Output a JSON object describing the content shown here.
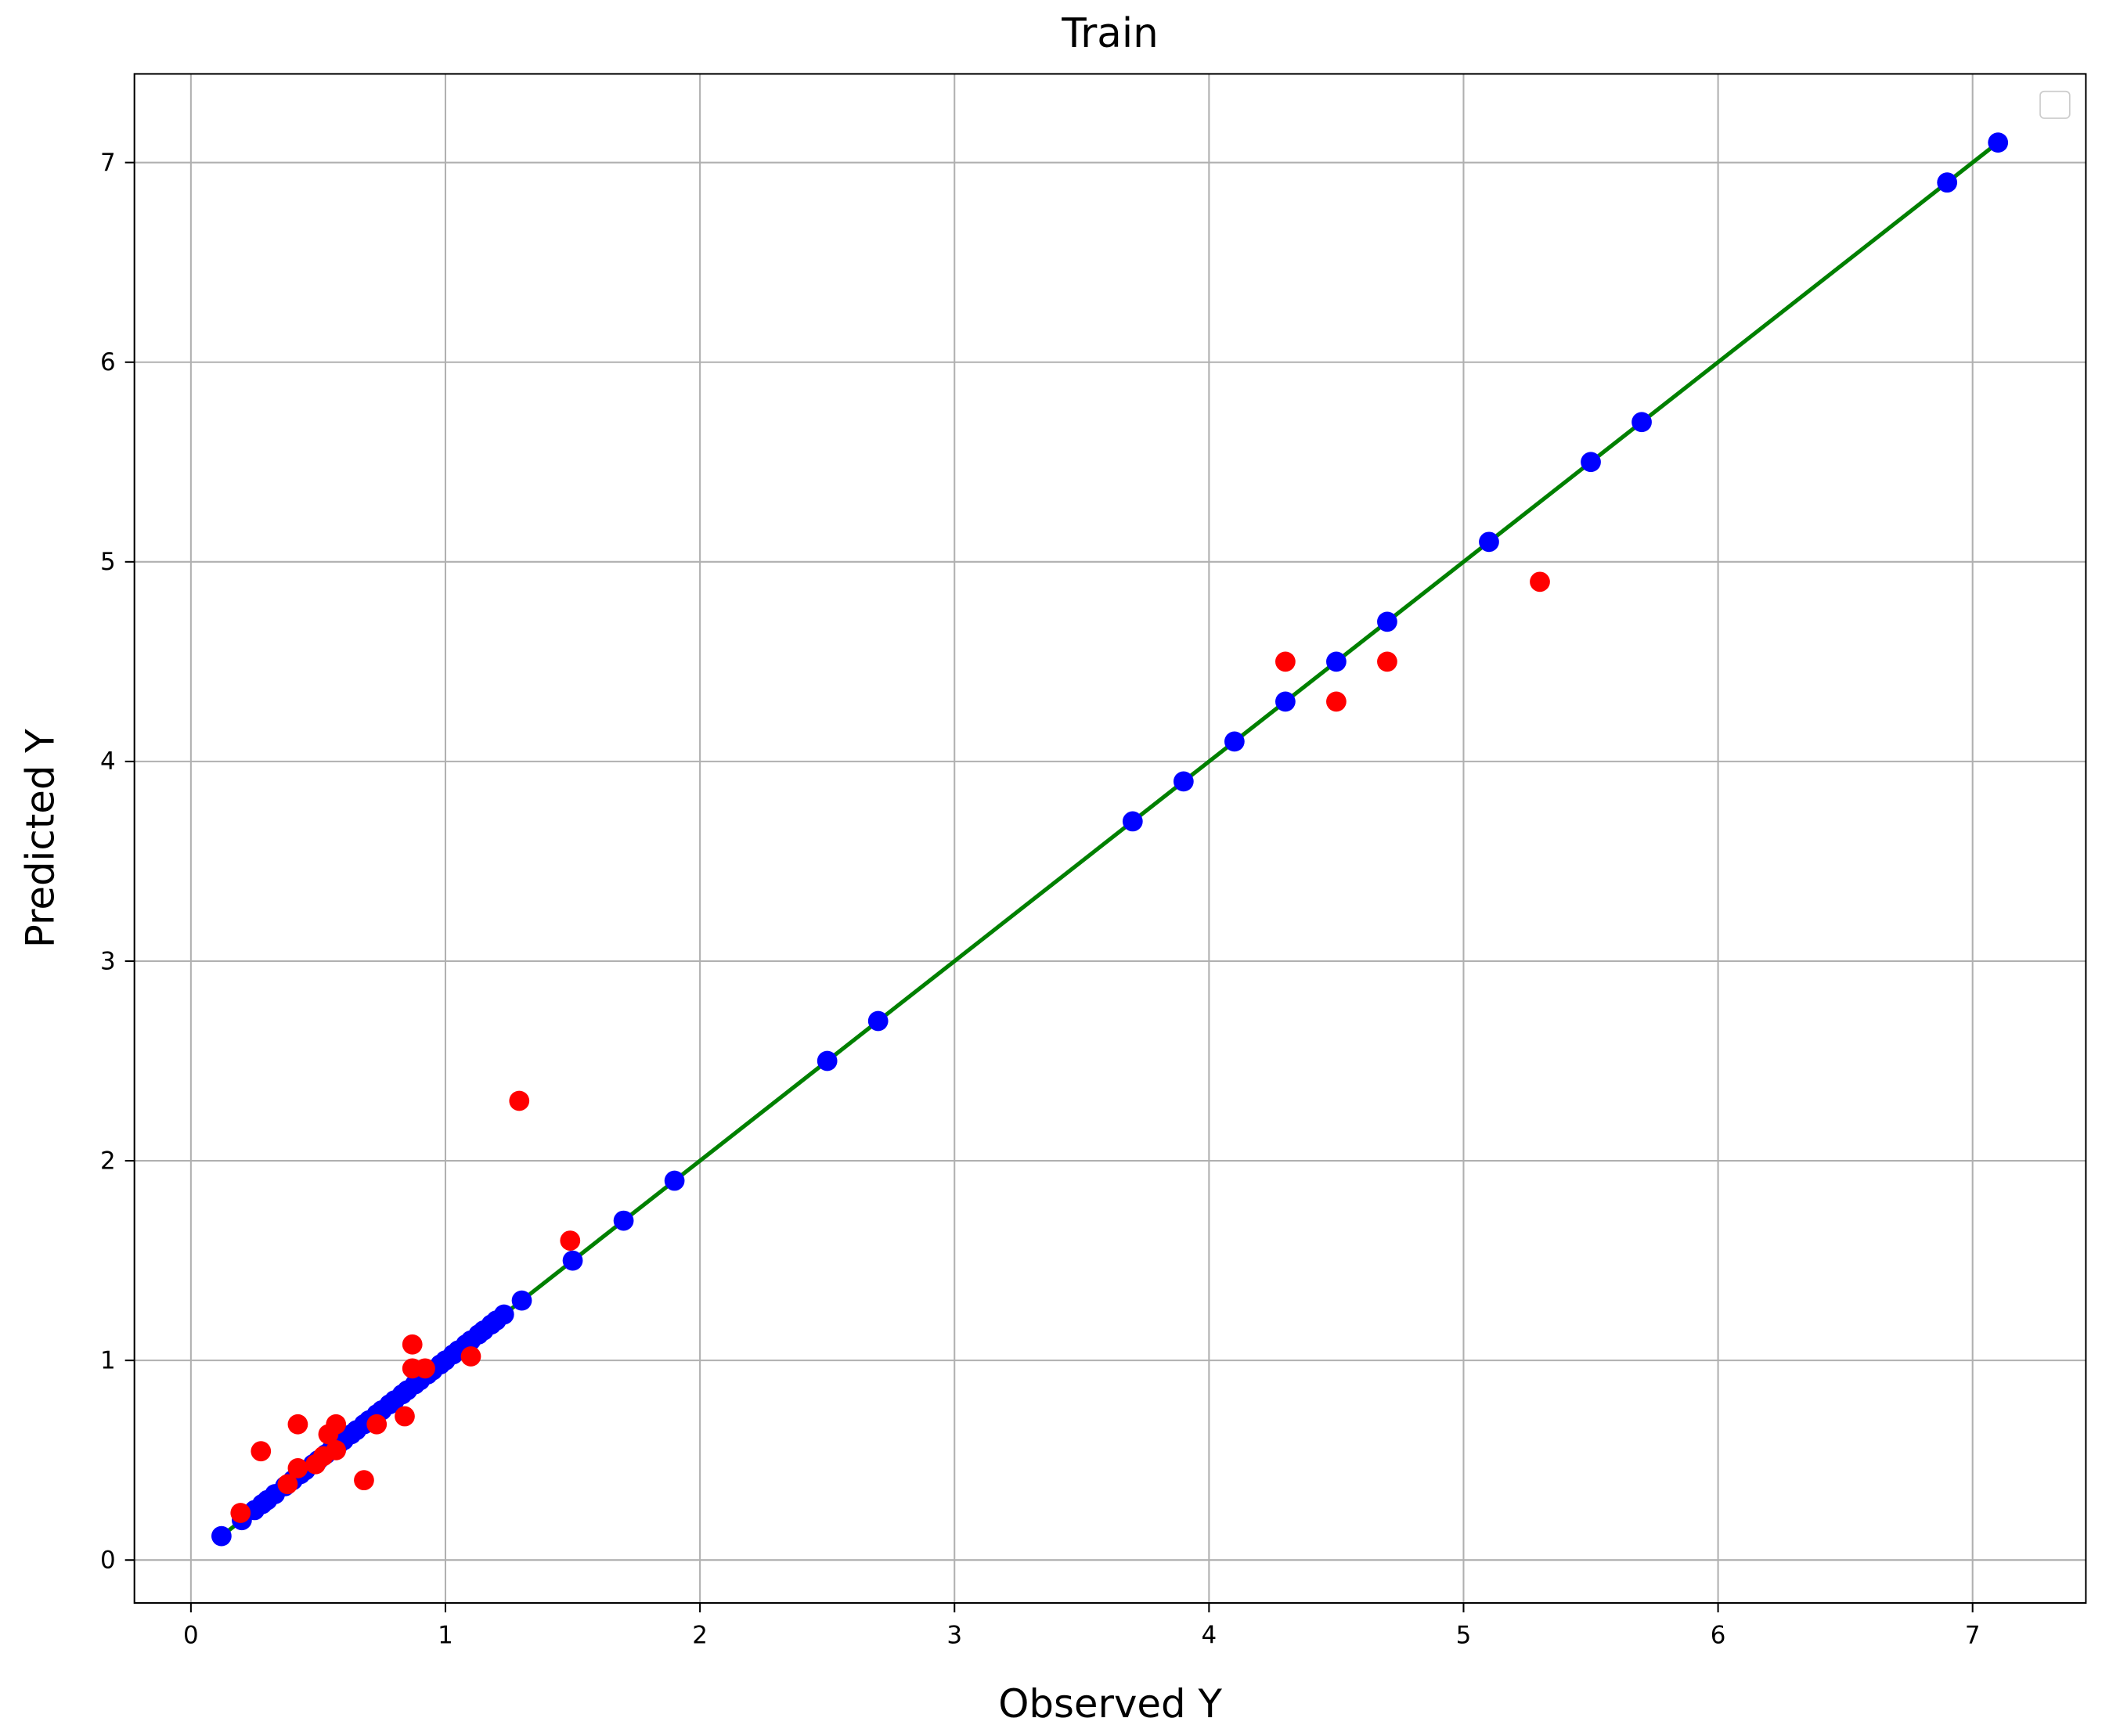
{
  "chart_data": {
    "type": "scatter",
    "title": "Train",
    "x_label": "Observed Y",
    "y_label": "Predicted Y",
    "xlim": [
      -0.222,
      7.445
    ],
    "ylim": [
      -0.215,
      7.444
    ],
    "xticks": [
      0,
      1,
      2,
      3,
      4,
      5,
      6,
      7
    ],
    "yticks": [
      0,
      1,
      2,
      3,
      4,
      5,
      6,
      7
    ],
    "grid": true,
    "series": [
      {
        "kind": "line",
        "color": "#008000",
        "x": [
          0.12,
          7.1
        ],
        "values": [
          0.12,
          7.1
        ]
      },
      {
        "kind": "scatter",
        "color": "#0000ff",
        "x": [
          0.12,
          0.2,
          0.25,
          0.28,
          0.3,
          0.33,
          0.37,
          0.4,
          0.43,
          0.45,
          0.48,
          0.5,
          0.53,
          0.55,
          0.58,
          0.6,
          0.63,
          0.65,
          0.68,
          0.7,
          0.73,
          0.75,
          0.78,
          0.8,
          0.83,
          0.85,
          0.88,
          0.9,
          0.93,
          0.95,
          0.98,
          1.0,
          1.03,
          1.05,
          1.08,
          1.1,
          1.13,
          1.15,
          1.18,
          1.2,
          1.23,
          1.3,
          1.5,
          1.7,
          1.9,
          2.5,
          2.7,
          3.7,
          3.9,
          4.1,
          4.3,
          4.5,
          4.7,
          5.1,
          5.5,
          5.7,
          6.9,
          7.1
        ],
        "values": [
          0.12,
          0.2,
          0.25,
          0.28,
          0.3,
          0.33,
          0.37,
          0.4,
          0.43,
          0.45,
          0.48,
          0.5,
          0.53,
          0.55,
          0.58,
          0.6,
          0.63,
          0.65,
          0.68,
          0.7,
          0.73,
          0.75,
          0.78,
          0.8,
          0.83,
          0.85,
          0.88,
          0.9,
          0.93,
          0.95,
          0.98,
          1.0,
          1.03,
          1.05,
          1.08,
          1.1,
          1.13,
          1.15,
          1.18,
          1.2,
          1.23,
          1.3,
          1.5,
          1.7,
          1.9,
          2.5,
          2.7,
          3.7,
          3.9,
          4.1,
          4.3,
          4.5,
          4.7,
          5.1,
          5.5,
          5.7,
          6.9,
          7.1
        ]
      },
      {
        "kind": "scatter",
        "color": "#ff0000",
        "x": [
          0.195,
          0.275,
          0.42,
          0.38,
          0.42,
          0.49,
          0.52,
          0.54,
          0.57,
          0.57,
          0.68,
          0.73,
          0.84,
          0.87,
          0.87,
          0.92,
          1.1,
          1.29,
          1.49,
          4.3,
          4.5,
          4.7,
          5.3
        ],
        "values": [
          0.236,
          0.545,
          0.68,
          0.38,
          0.46,
          0.48,
          0.52,
          0.63,
          0.68,
          0.55,
          0.4,
          0.68,
          0.72,
          1.08,
          0.96,
          0.96,
          1.02,
          2.3,
          1.6,
          4.5,
          4.3,
          4.5,
          4.9
        ]
      }
    ]
  }
}
